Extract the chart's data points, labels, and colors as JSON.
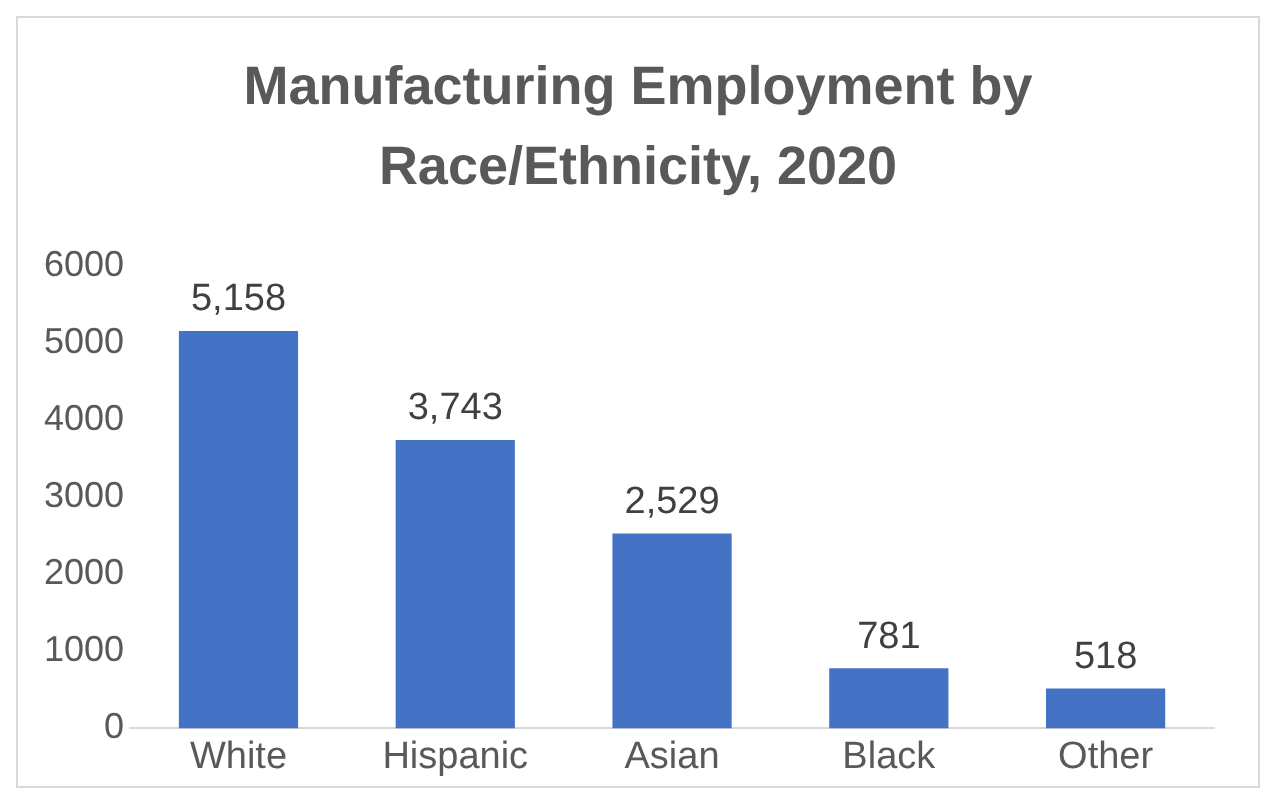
{
  "chart_data": {
    "type": "bar",
    "title": "Manufacturing Employment by Race/Ethnicity, 2020",
    "categories": [
      "White",
      "Hispanic",
      "Asian",
      "Black",
      "Other"
    ],
    "values": [
      5158,
      3743,
      2529,
      781,
      518
    ],
    "value_labels": [
      "5,158",
      "3,743",
      "2,529",
      "781",
      "518"
    ],
    "color": "#4472c4",
    "ylim": [
      0,
      6000
    ],
    "yticks": [
      0,
      1000,
      2000,
      3000,
      4000,
      5000,
      6000
    ],
    "grid": false,
    "legend": false
  }
}
